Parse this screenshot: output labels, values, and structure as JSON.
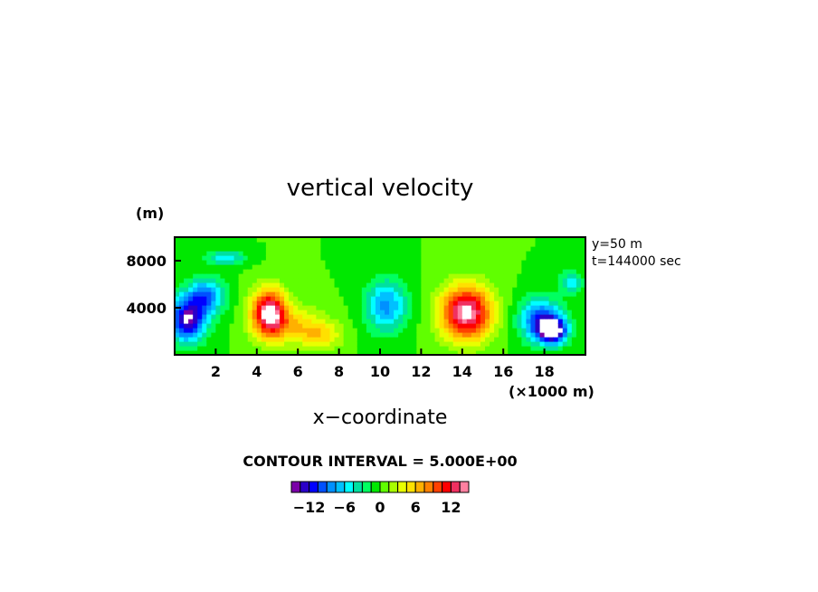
{
  "chart_data": {
    "type": "heatmap",
    "title": "vertical velocity",
    "xlabel": "x−coordinate",
    "x_unit": "(×1000 m)",
    "y_unit": "(m)",
    "xlim": [
      0,
      20
    ],
    "ylim": [
      0,
      10000
    ],
    "x_ticks": [
      2,
      4,
      6,
      8,
      10,
      12,
      14,
      16,
      18
    ],
    "y_ticks": [
      4000,
      8000
    ],
    "x_tick_labels": [
      "2",
      "4",
      "6",
      "8",
      "10",
      "12",
      "14",
      "16",
      "18"
    ],
    "y_tick_labels": [
      "4000",
      "8000"
    ],
    "annotations": [
      "y=50 m",
      "t=144000 sec"
    ],
    "contour_interval_label": "CONTOUR INTERVAL = 5.000E+00",
    "colorbar": {
      "tick_labels": [
        "−12",
        "−6",
        "0",
        "6",
        "12"
      ],
      "tick_values": [
        -12,
        -6,
        0,
        6,
        12
      ],
      "range": [
        -15,
        15
      ],
      "colors": [
        "#7a00a8",
        "#2a00c8",
        "#0000ff",
        "#0050ff",
        "#0090ff",
        "#00c0ff",
        "#00ffff",
        "#00e0a0",
        "#00ff60",
        "#00e800",
        "#60ff00",
        "#a8ff00",
        "#e8ff00",
        "#ffe000",
        "#ffb000",
        "#ff8000",
        "#ff4000",
        "#ff0000",
        "#f03060",
        "#ff80a0"
      ]
    },
    "features": [
      {
        "x": 0.6,
        "z": 3000,
        "w": -14,
        "sx": 0.9,
        "sz": 1800
      },
      {
        "x": 1.5,
        "z": 5000,
        "w": -9,
        "sx": 0.9,
        "sz": 1500
      },
      {
        "x": 2.5,
        "z": 8300,
        "w": -6,
        "sx": 0.9,
        "sz": 600
      },
      {
        "x": 4.6,
        "z": 3600,
        "w": 15,
        "sx": 0.85,
        "sz": 2000
      },
      {
        "x": 6.0,
        "z": 2500,
        "w": 5,
        "sx": 1.5,
        "sz": 1600
      },
      {
        "x": 7.2,
        "z": 1600,
        "w": 4,
        "sx": 1.0,
        "sz": 1100
      },
      {
        "x": 10.3,
        "z": 4200,
        "w": -8,
        "sx": 1.0,
        "sz": 2200
      },
      {
        "x": 14.2,
        "z": 3600,
        "w": 15,
        "sx": 1.25,
        "sz": 2300
      },
      {
        "x": 17.8,
        "z": 3000,
        "w": -10,
        "sx": 1.0,
        "sz": 1800
      },
      {
        "x": 18.4,
        "z": 2100,
        "w": -15,
        "sx": 0.7,
        "sz": 1100
      },
      {
        "x": 19.3,
        "z": 6200,
        "w": -5,
        "sx": 0.6,
        "sz": 1000
      }
    ]
  }
}
